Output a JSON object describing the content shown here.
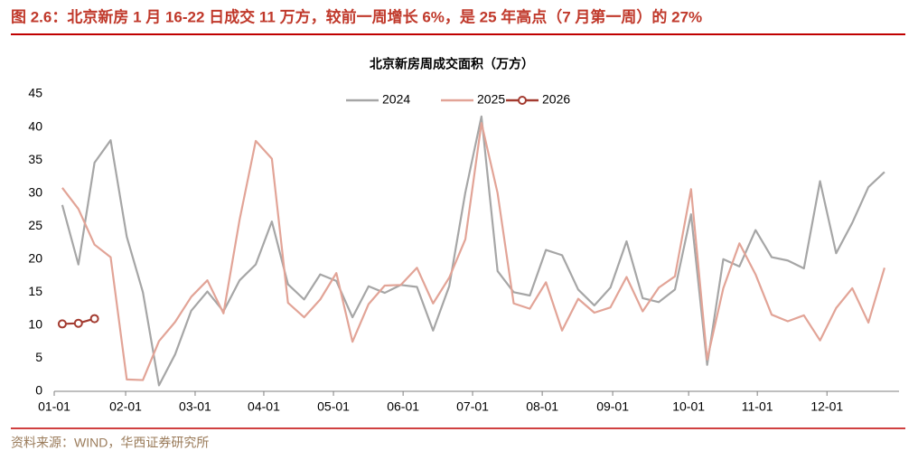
{
  "header": {
    "title": "图 2.6：北京新房 1 月 16-22 日成交 11 万方，较前一周增长 6%，是 25 年高点（7 月第一周）的 27%"
  },
  "source": "资料来源：WIND，华西证券研究所",
  "chart_data": {
    "type": "line",
    "title": "北京新房周成交面积（万方）",
    "x": [
      1,
      2,
      3,
      4,
      5,
      6,
      7,
      8,
      9,
      10,
      11,
      12,
      13,
      14,
      15,
      16,
      17,
      18,
      19,
      20,
      21,
      22,
      23,
      24,
      25,
      26,
      27,
      28,
      29,
      30,
      31,
      32,
      33,
      34,
      35,
      36,
      37,
      38,
      39,
      40,
      41,
      42,
      43,
      44,
      45,
      46,
      47,
      48,
      49,
      50,
      51,
      52
    ],
    "xlim": [
      0.5,
      52.9
    ],
    "xticks": [
      {
        "value": 0.5,
        "label": "01-01"
      },
      {
        "value": 4.93,
        "label": "02-01"
      },
      {
        "value": 9.24,
        "label": "03-01"
      },
      {
        "value": 13.5,
        "label": "04-01"
      },
      {
        "value": 17.82,
        "label": "05-01"
      },
      {
        "value": 22.14,
        "label": "06-01"
      },
      {
        "value": 26.45,
        "label": "07-01"
      },
      {
        "value": 30.77,
        "label": "08-01"
      },
      {
        "value": 35.14,
        "label": "09-01"
      },
      {
        "value": 39.85,
        "label": "10-01"
      },
      {
        "value": 44.11,
        "label": "11-01"
      },
      {
        "value": 48.43,
        "label": "12-01"
      }
    ],
    "ylim": [
      0,
      45
    ],
    "yticks": [
      0,
      5,
      10,
      15,
      20,
      25,
      30,
      35,
      40,
      45
    ],
    "grid": false,
    "legend": "top",
    "series": [
      {
        "name": "2024",
        "color": "#a6a6a6",
        "values": [
          28.2,
          19.2,
          34.6,
          38,
          23.4,
          15,
          0.9,
          5.6,
          12.2,
          15.1,
          12.1,
          16.8,
          19.2,
          25.7,
          16.2,
          13.9,
          17.7,
          16.7,
          11.2,
          15.9,
          14.9,
          16.1,
          15.8,
          9.2,
          15.9,
          30.1,
          41.6,
          18.2,
          15,
          14.5,
          21.4,
          20.6,
          15.4,
          13,
          15.7,
          22.7,
          14.1,
          13.5,
          15.4,
          26.8,
          4,
          20,
          18.9,
          24.4,
          20.3,
          19.8,
          18.6,
          31.8,
          20.9,
          25.5,
          30.9,
          33.2
        ]
      },
      {
        "name": "2025",
        "color": "#e2a497",
        "values": [
          30.8,
          27.6,
          22.2,
          20.3,
          1.8,
          1.7,
          7.6,
          10.5,
          14.3,
          16.8,
          11.8,
          26,
          37.9,
          35.2,
          13.4,
          11.2,
          13.9,
          17.9,
          7.5,
          13.2,
          16,
          16.1,
          18.7,
          13.3,
          17.2,
          23,
          40.6,
          30,
          13.3,
          12.5,
          16.5,
          9.2,
          14,
          11.9,
          12.7,
          17.3,
          12.1,
          15.7,
          17.4,
          30.6,
          4.8,
          15.6,
          22.4,
          17.7,
          11.6,
          10.6,
          11.5,
          7.7,
          12.6,
          15.6,
          10.4,
          18.7
        ]
      },
      {
        "name": "2026",
        "color": "#a33b30",
        "markers": true,
        "values": [
          10.2,
          10.3,
          11,
          null,
          null,
          null,
          null,
          null,
          null,
          null,
          null,
          null,
          null,
          null,
          null,
          null,
          null,
          null,
          null,
          null,
          null,
          null,
          null,
          null,
          null,
          null,
          null,
          null,
          null,
          null,
          null,
          null,
          null,
          null,
          null,
          null,
          null,
          null,
          null,
          null,
          null,
          null,
          null,
          null,
          null,
          null,
          null,
          null,
          null,
          null,
          null,
          null
        ]
      }
    ]
  }
}
